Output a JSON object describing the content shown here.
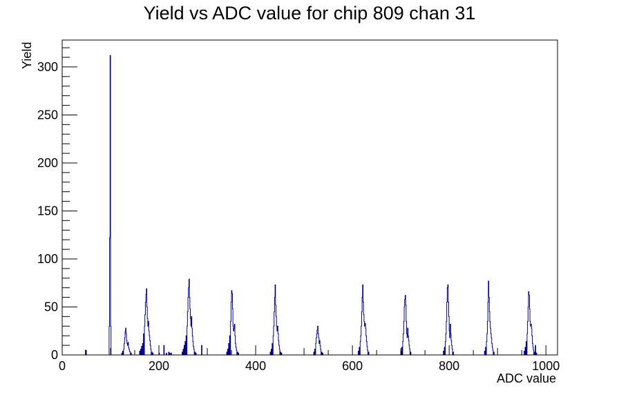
{
  "chart_data": {
    "type": "histogram",
    "title": "Yield vs ADC value for chip 809 chan 31",
    "xlabel": "ADC value",
    "ylabel": "Yield",
    "xlim": [
      0,
      1024
    ],
    "ylim": [
      0,
      328
    ],
    "x_ticks": [
      0,
      200,
      400,
      600,
      800,
      1000
    ],
    "y_ticks": [
      0,
      50,
      100,
      150,
      200,
      250,
      300
    ],
    "grid": false,
    "legend": "none",
    "line_color": "#000099",
    "series": [
      {
        "bins": [
          [
            48,
            5
          ],
          [
            97,
            30
          ],
          [
            98,
            122
          ],
          [
            99,
            312
          ],
          [
            100,
            30
          ],
          [
            123,
            2
          ],
          [
            125,
            4
          ],
          [
            127,
            6
          ],
          [
            128,
            12
          ],
          [
            129,
            18
          ],
          [
            130,
            24
          ],
          [
            131,
            28
          ],
          [
            132,
            22
          ],
          [
            133,
            15
          ],
          [
            134,
            12
          ],
          [
            135,
            10
          ],
          [
            136,
            13
          ],
          [
            137,
            8
          ],
          [
            138,
            6
          ],
          [
            139,
            4
          ],
          [
            140,
            3
          ],
          [
            142,
            2
          ],
          [
            160,
            4
          ],
          [
            162,
            6
          ],
          [
            164,
            9
          ],
          [
            166,
            12
          ],
          [
            168,
            22
          ],
          [
            170,
            30
          ],
          [
            171,
            42
          ],
          [
            172,
            55
          ],
          [
            173,
            63
          ],
          [
            174,
            69
          ],
          [
            175,
            50
          ],
          [
            176,
            38
          ],
          [
            177,
            30
          ],
          [
            178,
            35
          ],
          [
            179,
            25
          ],
          [
            180,
            20
          ],
          [
            181,
            15
          ],
          [
            182,
            10
          ],
          [
            183,
            6
          ],
          [
            185,
            3
          ],
          [
            187,
            2
          ],
          [
            200,
            2
          ],
          [
            210,
            10
          ],
          [
            215,
            2
          ],
          [
            220,
            3
          ],
          [
            222,
            2
          ],
          [
            225,
            2
          ],
          [
            248,
            3
          ],
          [
            250,
            6
          ],
          [
            252,
            10
          ],
          [
            254,
            14
          ],
          [
            256,
            20
          ],
          [
            258,
            30
          ],
          [
            259,
            45
          ],
          [
            260,
            60
          ],
          [
            261,
            70
          ],
          [
            262,
            79
          ],
          [
            263,
            60
          ],
          [
            264,
            48
          ],
          [
            265,
            38
          ],
          [
            266,
            30
          ],
          [
            267,
            40
          ],
          [
            268,
            28
          ],
          [
            269,
            20
          ],
          [
            270,
            14
          ],
          [
            271,
            9
          ],
          [
            272,
            6
          ],
          [
            274,
            3
          ],
          [
            276,
            2
          ],
          [
            288,
            10
          ],
          [
            340,
            3
          ],
          [
            342,
            6
          ],
          [
            344,
            12
          ],
          [
            346,
            20
          ],
          [
            348,
            35
          ],
          [
            349,
            55
          ],
          [
            350,
            67
          ],
          [
            351,
            64
          ],
          [
            352,
            48
          ],
          [
            353,
            30
          ],
          [
            354,
            25
          ],
          [
            355,
            28
          ],
          [
            356,
            32
          ],
          [
            357,
            20
          ],
          [
            358,
            12
          ],
          [
            359,
            8
          ],
          [
            360,
            5
          ],
          [
            362,
            3
          ],
          [
            364,
            2
          ],
          [
            430,
            3
          ],
          [
            432,
            6
          ],
          [
            434,
            12
          ],
          [
            436,
            20
          ],
          [
            437,
            30
          ],
          [
            438,
            45
          ],
          [
            439,
            60
          ],
          [
            440,
            73
          ],
          [
            441,
            52
          ],
          [
            442,
            40
          ],
          [
            443,
            30
          ],
          [
            444,
            25
          ],
          [
            445,
            30
          ],
          [
            446,
            22
          ],
          [
            447,
            15
          ],
          [
            448,
            10
          ],
          [
            449,
            6
          ],
          [
            451,
            3
          ],
          [
            453,
            2
          ],
          [
            520,
            3
          ],
          [
            522,
            6
          ],
          [
            524,
            12
          ],
          [
            525,
            18
          ],
          [
            526,
            22
          ],
          [
            527,
            26
          ],
          [
            528,
            30
          ],
          [
            529,
            22
          ],
          [
            530,
            18
          ],
          [
            531,
            12
          ],
          [
            532,
            15
          ],
          [
            533,
            10
          ],
          [
            534,
            6
          ],
          [
            536,
            3
          ],
          [
            538,
            2
          ],
          [
            612,
            4
          ],
          [
            614,
            8
          ],
          [
            616,
            14
          ],
          [
            617,
            20
          ],
          [
            618,
            30
          ],
          [
            619,
            45
          ],
          [
            620,
            60
          ],
          [
            621,
            73
          ],
          [
            622,
            55
          ],
          [
            623,
            42
          ],
          [
            624,
            35
          ],
          [
            625,
            30
          ],
          [
            626,
            33
          ],
          [
            627,
            28
          ],
          [
            628,
            20
          ],
          [
            629,
            14
          ],
          [
            630,
            9
          ],
          [
            631,
            5
          ],
          [
            633,
            3
          ],
          [
            700,
            4
          ],
          [
            702,
            8
          ],
          [
            704,
            14
          ],
          [
            705,
            22
          ],
          [
            706,
            35
          ],
          [
            707,
            50
          ],
          [
            708,
            58
          ],
          [
            709,
            62
          ],
          [
            710,
            52
          ],
          [
            711,
            35
          ],
          [
            712,
            22
          ],
          [
            713,
            18
          ],
          [
            714,
            28
          ],
          [
            715,
            20
          ],
          [
            716,
            15
          ],
          [
            717,
            10
          ],
          [
            718,
            6
          ],
          [
            720,
            3
          ],
          [
            788,
            4
          ],
          [
            790,
            8
          ],
          [
            792,
            14
          ],
          [
            793,
            22
          ],
          [
            794,
            35
          ],
          [
            795,
            55
          ],
          [
            796,
            70
          ],
          [
            797,
            73
          ],
          [
            798,
            55
          ],
          [
            799,
            40
          ],
          [
            800,
            25
          ],
          [
            801,
            18
          ],
          [
            802,
            32
          ],
          [
            803,
            22
          ],
          [
            804,
            15
          ],
          [
            805,
            10
          ],
          [
            806,
            6
          ],
          [
            808,
            3
          ],
          [
            873,
            4
          ],
          [
            875,
            8
          ],
          [
            877,
            14
          ],
          [
            878,
            22
          ],
          [
            879,
            35
          ],
          [
            880,
            55
          ],
          [
            881,
            77
          ],
          [
            882,
            60
          ],
          [
            883,
            45
          ],
          [
            884,
            35
          ],
          [
            885,
            28
          ],
          [
            886,
            22
          ],
          [
            887,
            18
          ],
          [
            888,
            12
          ],
          [
            889,
            8
          ],
          [
            890,
            5
          ],
          [
            892,
            3
          ],
          [
            955,
            4
          ],
          [
            957,
            8
          ],
          [
            959,
            14
          ],
          [
            961,
            22
          ],
          [
            962,
            35
          ],
          [
            963,
            50
          ],
          [
            964,
            66
          ],
          [
            965,
            62
          ],
          [
            966,
            48
          ],
          [
            967,
            35
          ],
          [
            968,
            30
          ],
          [
            969,
            32
          ],
          [
            970,
            28
          ],
          [
            971,
            20
          ],
          [
            972,
            12
          ],
          [
            973,
            8
          ],
          [
            974,
            5
          ],
          [
            976,
            3
          ],
          [
            978,
            10
          ],
          [
            980,
            2
          ]
        ]
      }
    ]
  }
}
